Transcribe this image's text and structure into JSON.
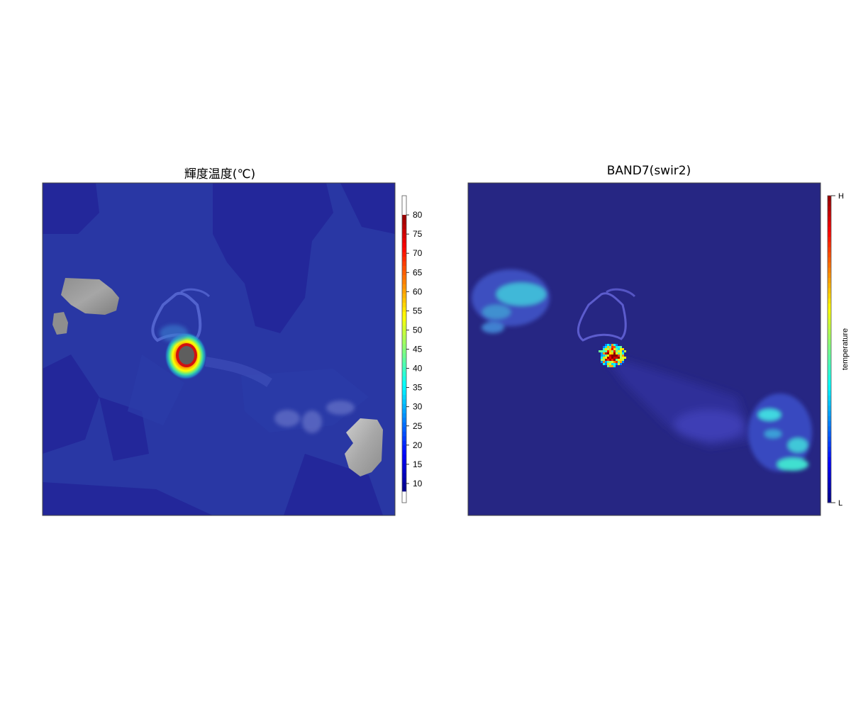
{
  "panels": {
    "left": {
      "title": "輝度温度(℃)"
    },
    "right": {
      "title": "BAND7(swir2)"
    }
  },
  "colors": {
    "background_sea": "#2836a0",
    "background_sea_dark": "#23269a",
    "right_background": "#262683",
    "cloud_gray": "#9c9c9c",
    "hot_core": "#5a5a5a",
    "colormap": [
      "#00008b",
      "#0000ff",
      "#0080ff",
      "#00ffff",
      "#80ff80",
      "#ffff00",
      "#ff8000",
      "#ff0000",
      "#8b0000"
    ]
  },
  "chart_data": [
    {
      "type": "heatmap",
      "title": "輝度温度(℃)",
      "colorbar": {
        "range": [
          5,
          85
        ],
        "ticks": [
          10,
          15,
          20,
          25,
          30,
          35,
          40,
          45,
          50,
          55,
          60,
          65,
          70,
          75,
          80
        ],
        "tick_labels": [
          "10",
          "15",
          "20",
          "25",
          "30",
          "35",
          "40",
          "45",
          "50",
          "55",
          "60",
          "65",
          "70",
          "75",
          "80"
        ],
        "colored_range": [
          8,
          80
        ]
      },
      "features": [
        {
          "name": "hot-core",
          "peak_value": 80,
          "shape": "concentric"
        },
        {
          "name": "clouds",
          "fill": "gray"
        }
      ]
    },
    {
      "type": "heatmap",
      "title": "BAND7(swir2)",
      "colorbar": {
        "label": "temperature",
        "tick_labels": [
          "L",
          "H"
        ]
      }
    }
  ]
}
